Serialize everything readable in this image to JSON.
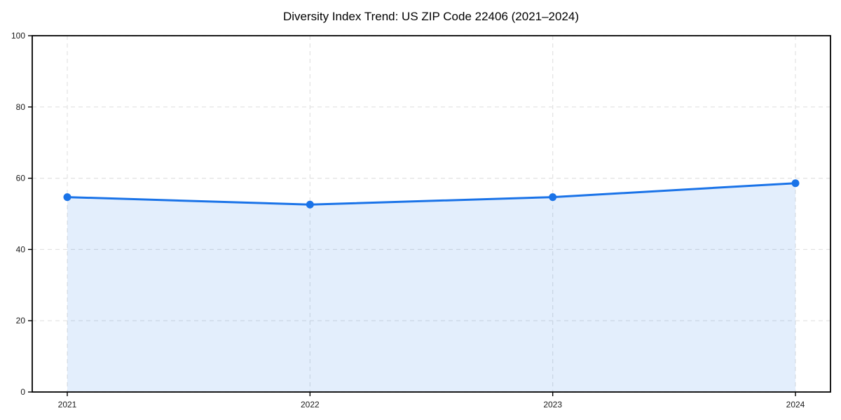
{
  "chart_data": {
    "type": "line",
    "title": "Diversity Index Trend: US ZIP Code 22406 (2021–2024)",
    "categories": [
      "2021",
      "2022",
      "2023",
      "2024"
    ],
    "values": [
      54.7,
      52.6,
      54.7,
      58.6
    ],
    "xlabel": "",
    "ylabel": "",
    "ylim": [
      0,
      100
    ],
    "yticks": [
      0,
      20,
      40,
      60,
      80,
      100
    ],
    "grid": "dashed-both-axes",
    "legend": "none",
    "area_fill": true,
    "marker": "circle",
    "colors": {
      "line": "#1a73e8",
      "marker_fill": "#1a73e8",
      "area_fill": "rgba(26,115,232,0.12)",
      "grid": "#e2e2e2",
      "axis": "#000000",
      "title_text": "#000000",
      "tick_text": "#1a1a1a",
      "background": "#ffffff"
    }
  }
}
